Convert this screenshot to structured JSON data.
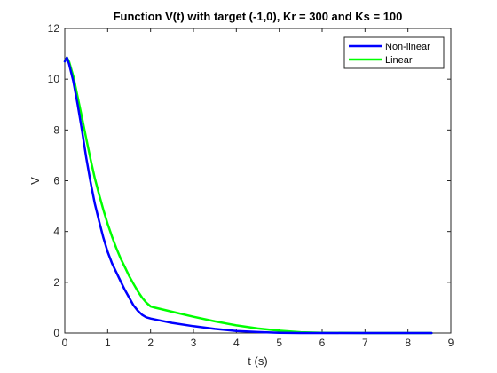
{
  "chart_data": {
    "type": "line",
    "title": "Function V(t) with target (-1,0), Kr = 300 and Ks = 100",
    "xlabel": "t (s)",
    "ylabel": "V",
    "xlim": [
      0,
      9
    ],
    "ylim": [
      0,
      12
    ],
    "xticks": [
      "0",
      "1",
      "2",
      "3",
      "4",
      "5",
      "6",
      "7",
      "8",
      "9"
    ],
    "yticks": [
      "0",
      "2",
      "4",
      "6",
      "8",
      "10",
      "12"
    ],
    "grid": false,
    "legend_position": "top-right",
    "series": [
      {
        "name": "Non-linear",
        "color": "#0000ff",
        "x": [
          0,
          0.05,
          0.1,
          0.2,
          0.3,
          0.4,
          0.5,
          0.6,
          0.7,
          0.8,
          0.9,
          1.0,
          1.1,
          1.2,
          1.3,
          1.4,
          1.5,
          1.6,
          1.7,
          1.8,
          1.9,
          2.0,
          2.2,
          2.5,
          3.0,
          3.5,
          4.0,
          4.5,
          5.0,
          5.5,
          6.0,
          7.0,
          8.0,
          8.55
        ],
        "y": [
          10.7,
          10.85,
          10.6,
          9.9,
          9.0,
          8.0,
          6.9,
          5.95,
          5.1,
          4.4,
          3.75,
          3.2,
          2.75,
          2.4,
          2.05,
          1.7,
          1.4,
          1.1,
          0.88,
          0.72,
          0.62,
          0.57,
          0.5,
          0.4,
          0.27,
          0.16,
          0.08,
          0.04,
          0.01,
          0.0,
          0.0,
          0.0,
          0.0,
          0.0
        ]
      },
      {
        "name": "Linear",
        "color": "#00ff00",
        "x": [
          0,
          0.05,
          0.1,
          0.2,
          0.3,
          0.4,
          0.5,
          0.6,
          0.7,
          0.8,
          0.9,
          1.0,
          1.1,
          1.2,
          1.3,
          1.4,
          1.5,
          1.6,
          1.7,
          1.8,
          1.9,
          2.0,
          2.1,
          2.5,
          3.0,
          3.5,
          4.0,
          4.5,
          5.0,
          5.5,
          6.0,
          7.0,
          8.0,
          8.55
        ],
        "y": [
          10.7,
          10.85,
          10.7,
          10.1,
          9.3,
          8.5,
          7.65,
          6.85,
          6.1,
          5.45,
          4.85,
          4.3,
          3.8,
          3.35,
          2.95,
          2.6,
          2.25,
          1.95,
          1.65,
          1.4,
          1.2,
          1.05,
          1.0,
          0.84,
          0.64,
          0.46,
          0.3,
          0.18,
          0.09,
          0.03,
          0.01,
          0.0,
          0.0,
          0.0
        ]
      }
    ]
  }
}
